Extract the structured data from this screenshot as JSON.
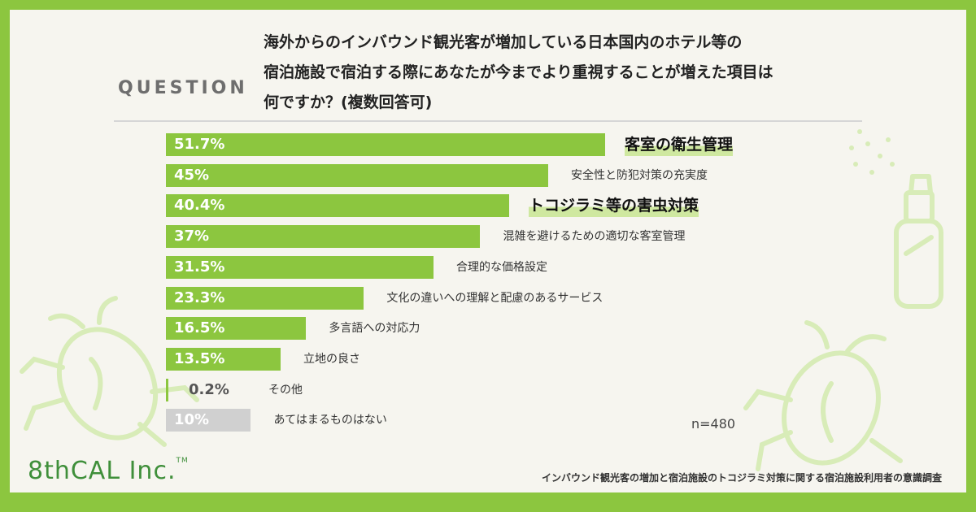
{
  "question_label": "QUESTION",
  "question_lines": [
    "海外からのインバウンド観光客が増加している日本国内のホテル等の",
    "宿泊施設で宿泊する際にあなたが今までより重視することが増えた項目は",
    "何ですか？(複数回答可)"
  ],
  "sample_size": "n=480",
  "logo": "8thCAL Inc.",
  "logo_tm": "TM",
  "source": "インバウンド観光客の増加と宿泊施設のトコジラミ対策に関する宿泊施設利用者の意識調査",
  "colors": {
    "frame": "#8cc63f",
    "bar": "#8cc63f",
    "bar_other": "#d0d0d0",
    "highlight": "#cfe8a0"
  },
  "chart_data": {
    "type": "bar",
    "orientation": "horizontal",
    "unit": "%",
    "xlim": [
      0,
      60
    ],
    "categories": [
      "客室の衛生管理",
      "安全性と防犯対策の充実度",
      "トコジラミ等の害虫対策",
      "混雑を避けるための適切な客室管理",
      "合理的な価格設定",
      "文化の違いへの理解と配慮のあるサービス",
      "多言語への対応力",
      "立地の良さ",
      "その他",
      "あてはまるものはない"
    ],
    "values": [
      51.7,
      45,
      40.4,
      37,
      31.5,
      23.3,
      16.5,
      13.5,
      0.2,
      10
    ],
    "value_labels": [
      "51.7%",
      "45%",
      "40.4%",
      "37%",
      "31.5%",
      "23.3%",
      "16.5%",
      "13.5%",
      "0.2%",
      "10%"
    ],
    "highlighted": [
      "客室の衛生管理",
      "トコジラミ等の害虫対策"
    ],
    "grey": [
      "あてはまるものはない"
    ]
  }
}
